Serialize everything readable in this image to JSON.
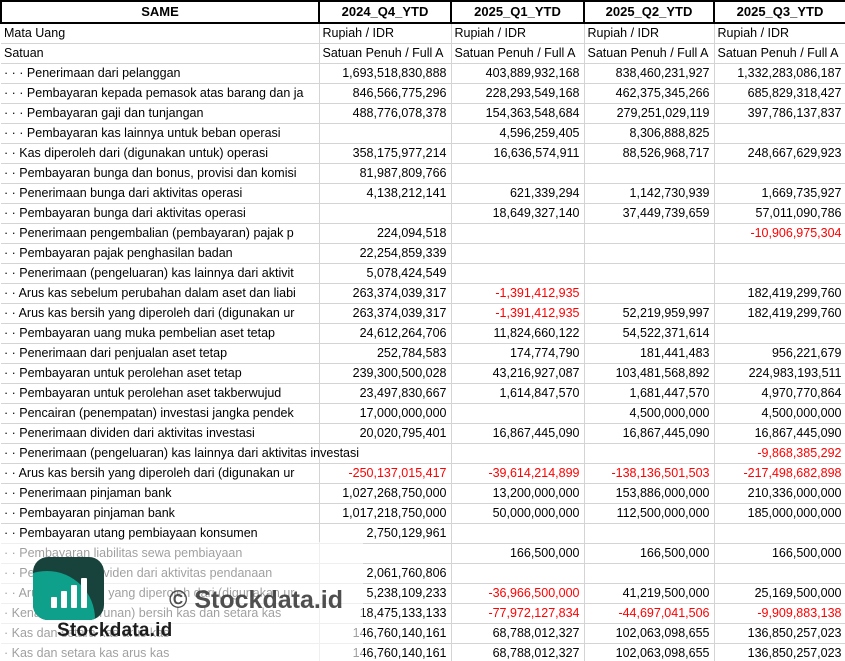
{
  "header": {
    "title": "SAME",
    "columns": [
      "2024_Q4_YTD",
      "2025_Q1_YTD",
      "2025_Q2_YTD",
      "2025_Q3_YTD"
    ]
  },
  "meta_rows": [
    {
      "label": "Mata Uang",
      "values": [
        "Rupiah / IDR",
        "Rupiah / IDR",
        "Rupiah / IDR",
        "Rupiah / IDR"
      ]
    },
    {
      "label": "Satuan",
      "values": [
        "Satuan Penuh / Full A",
        "Satuan Penuh / Full A",
        "Satuan Penuh / Full A",
        "Satuan Penuh / Full A"
      ]
    }
  ],
  "rows": [
    {
      "label": "· · · Penerimaan dari pelanggan",
      "values": [
        "1,693,518,830,888",
        "403,889,932,168",
        "838,460,231,927",
        "1,332,283,086,187"
      ]
    },
    {
      "label": "· · · Pembayaran kepada pemasok atas barang dan ja",
      "values": [
        "846,566,775,296",
        "228,293,549,168",
        "462,375,345,266",
        "685,829,318,427"
      ]
    },
    {
      "label": "· · · Pembayaran gaji dan tunjangan",
      "values": [
        "488,776,078,378",
        "154,363,548,684",
        "279,251,029,119",
        "397,786,137,837"
      ]
    },
    {
      "label": "· · · Pembayaran kas lainnya untuk beban operasi",
      "values": [
        "",
        "4,596,259,405",
        "8,306,888,825",
        ""
      ]
    },
    {
      "label": "· · Kas diperoleh dari (digunakan untuk) operasi",
      "values": [
        "358,175,977,214",
        "16,636,574,911",
        "88,526,968,717",
        "248,667,629,923"
      ]
    },
    {
      "label": "· · Pembayaran bunga dan bonus, provisi dan komisi",
      "values": [
        "81,987,809,766",
        "",
        "",
        ""
      ]
    },
    {
      "label": "· · Penerimaan bunga dari aktivitas operasi",
      "values": [
        "4,138,212,141",
        "621,339,294",
        "1,142,730,939",
        "1,669,735,927"
      ]
    },
    {
      "label": "· · Pembayaran bunga dari aktivitas operasi",
      "values": [
        "",
        "18,649,327,140",
        "37,449,739,659",
        "57,011,090,786"
      ]
    },
    {
      "label": "· · Penerimaan pengembalian (pembayaran) pajak p",
      "values": [
        "224,094,518",
        "",
        "",
        "-10,906,975,304"
      ]
    },
    {
      "label": "· · Pembayaran pajak penghasilan badan",
      "values": [
        "22,254,859,339",
        "",
        "",
        ""
      ]
    },
    {
      "label": "· · Penerimaan (pengeluaran) kas lainnya dari aktivit",
      "values": [
        "5,078,424,549",
        "",
        "",
        ""
      ]
    },
    {
      "label": "· · Arus kas sebelum perubahan dalam aset dan liabi",
      "values": [
        "263,374,039,317",
        "-1,391,412,935",
        "",
        "182,419,299,760"
      ]
    },
    {
      "label": "· · Arus kas bersih yang diperoleh dari (digunakan ur",
      "values": [
        "263,374,039,317",
        "-1,391,412,935",
        "52,219,959,997",
        "182,419,299,760"
      ]
    },
    {
      "label": "· · Pembayaran uang muka pembelian aset tetap",
      "values": [
        "24,612,264,706",
        "11,824,660,122",
        "54,522,371,614",
        ""
      ]
    },
    {
      "label": "· · Penerimaan dari penjualan aset tetap",
      "values": [
        "252,784,583",
        "174,774,790",
        "181,441,483",
        "956,221,679"
      ]
    },
    {
      "label": "· · Pembayaran untuk perolehan aset tetap",
      "values": [
        "239,300,500,028",
        "43,216,927,087",
        "103,481,568,892",
        "224,983,193,511"
      ]
    },
    {
      "label": "· · Pembayaran untuk perolehan aset takberwujud",
      "values": [
        "23,497,830,667",
        "1,614,847,570",
        "1,681,447,570",
        "4,970,770,864"
      ]
    },
    {
      "label": "· · Pencairan (penempatan) investasi jangka pendek",
      "values": [
        "17,000,000,000",
        "",
        "4,500,000,000",
        "4,500,000,000"
      ]
    },
    {
      "label": "· · Penerimaan dividen dari aktivitas investasi",
      "values": [
        "20,020,795,401",
        "16,867,445,090",
        "16,867,445,090",
        "16,867,445,090"
      ]
    },
    {
      "label": "· · Penerimaan (pengeluaran) kas lainnya dari aktivitas investasi",
      "values": [
        "",
        "",
        "",
        "-9,868,385,292"
      ],
      "spill": true
    },
    {
      "label": "· · Arus kas bersih yang diperoleh dari (digunakan ur",
      "values": [
        "-250,137,015,417",
        "-39,614,214,899",
        "-138,136,501,503",
        "-217,498,682,898"
      ]
    },
    {
      "label": "· · Penerimaan pinjaman bank",
      "values": [
        "1,027,268,750,000",
        "13,200,000,000",
        "153,886,000,000",
        "210,336,000,000"
      ]
    },
    {
      "label": "· · Pembayaran pinjaman bank",
      "values": [
        "1,017,218,750,000",
        "50,000,000,000",
        "112,500,000,000",
        "185,000,000,000"
      ]
    },
    {
      "label": "· · Pembayaran utang pembiayaan konsumen",
      "values": [
        "2,750,129,961",
        "",
        "",
        ""
      ]
    },
    {
      "label": "· · Pembayaran liabilitas sewa pembiayaan",
      "values": [
        "",
        "166,500,000",
        "166,500,000",
        "166,500,000"
      ]
    },
    {
      "label": "· · Pembayaran dividen dari aktivitas pendanaan",
      "values": [
        "2,061,760,806",
        "",
        "",
        ""
      ]
    },
    {
      "label": "· · Arus kas bersih yang diperoleh dari (digunakan ur",
      "values": [
        "5,238,109,233",
        "-36,966,500,000",
        "41,219,500,000",
        "25,169,500,000"
      ]
    },
    {
      "label": "· Kenaikan (penurunan) bersih kas dan setara kas",
      "values": [
        "18,475,133,133",
        "-77,972,127,834",
        "-44,697,041,506",
        "-9,909,883,138"
      ]
    },
    {
      "label": "· Kas dan setara kas arus kas",
      "values": [
        "146,760,140,161",
        "68,788,012,327",
        "102,063,098,655",
        "136,850,257,023"
      ]
    },
    {
      "label": "· Kas dan setara kas arus kas",
      "values": [
        "146,760,140,161",
        "68,788,012,327",
        "102,063,098,655",
        "136,850,257,023"
      ]
    }
  ],
  "watermark": {
    "copyright_text": "© Stockdata.id",
    "brand_text": "Stockdata.id"
  },
  "colors": {
    "negative_value": "#FF0000",
    "gridline": "#D4D4D4",
    "header_border": "#000000",
    "logo_dark_teal": "#17433C",
    "logo_light_teal": "#0FA08B"
  }
}
